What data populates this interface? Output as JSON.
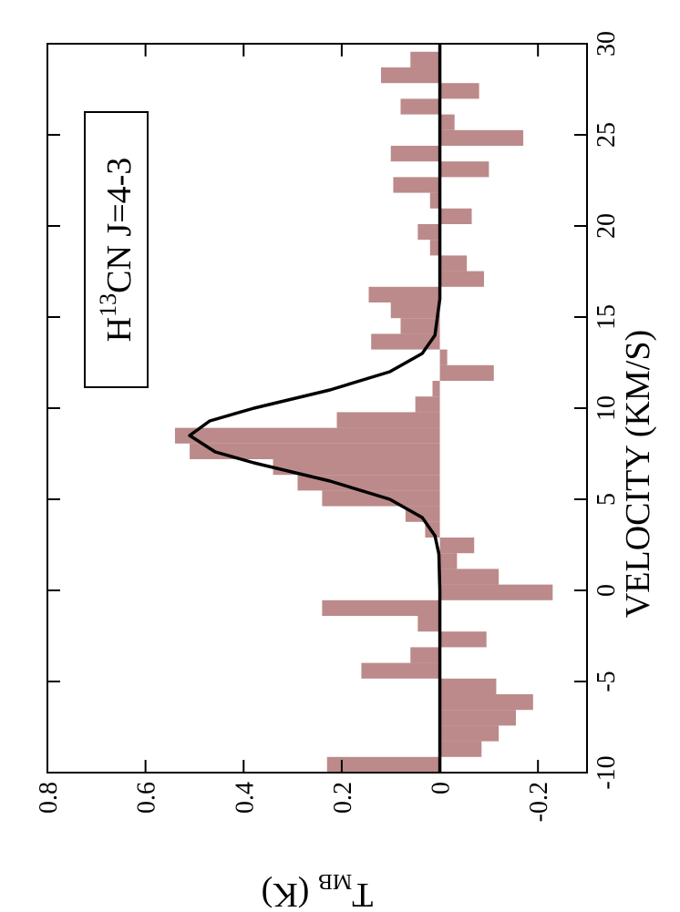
{
  "chart_data": {
    "type": "histogram",
    "annotation": [
      "H",
      "13",
      "CN J=4-3"
    ],
    "xlabel": "VELOCITY (KM/S)",
    "ylabel": [
      "T",
      "MB",
      " (K)"
    ],
    "bins": [
      -10,
      -9.14,
      -8.28,
      -7.42,
      -6.56,
      -5.7,
      -4.84,
      -3.98,
      -3.12,
      -2.26,
      -1.4,
      -0.54,
      0.32,
      1.18,
      2.04,
      2.9,
      3.76,
      4.62,
      5.48,
      6.34,
      7.2,
      8.06,
      8.92,
      9.78,
      10.64,
      11.5,
      12.36,
      13.22,
      14.08,
      14.94,
      15.8,
      16.66,
      17.52,
      18.38,
      19.24,
      20.1,
      20.96,
      21.82,
      22.68,
      23.54,
      24.4,
      25.26,
      26.12,
      26.98,
      27.84,
      28.7,
      29.56
    ],
    "values": [
      0.23,
      -0.085,
      -0.12,
      -0.155,
      -0.19,
      -0.115,
      0.16,
      0.06,
      -0.095,
      0.045,
      0.24,
      -0.23,
      -0.12,
      -0.035,
      -0.07,
      0.03,
      0.07,
      0.24,
      0.29,
      0.34,
      0.51,
      0.54,
      0.21,
      0.05,
      0.015,
      -0.11,
      -0.015,
      0.14,
      0.08,
      0.1,
      0.145,
      -0.09,
      -0.055,
      0.02,
      0.045,
      -0.065,
      0.02,
      0.095,
      -0.1,
      0.1,
      -0.17,
      -0.03,
      0.08,
      -0.08,
      0.12,
      0.06
    ],
    "color": "#bc8a8a",
    "line": {
      "color": "#000000",
      "x": [
        -10,
        0,
        2,
        3,
        4,
        5,
        6,
        7,
        7.6,
        8.5,
        9.3,
        10,
        11,
        12,
        13,
        14,
        16,
        30
      ],
      "values": [
        0,
        0,
        0.002,
        0.01,
        0.036,
        0.102,
        0.224,
        0.379,
        0.458,
        0.51,
        0.469,
        0.379,
        0.224,
        0.102,
        0.036,
        0.01,
        0,
        0
      ]
    },
    "xlim": [
      -10,
      30
    ],
    "xticks": [
      -10,
      -5,
      0,
      5,
      10,
      15,
      20,
      25,
      30
    ],
    "ylim": [
      -0.3,
      0.8
    ],
    "yticks": [
      -0.2,
      0,
      0.2,
      0.4,
      0.6,
      0.8
    ]
  }
}
